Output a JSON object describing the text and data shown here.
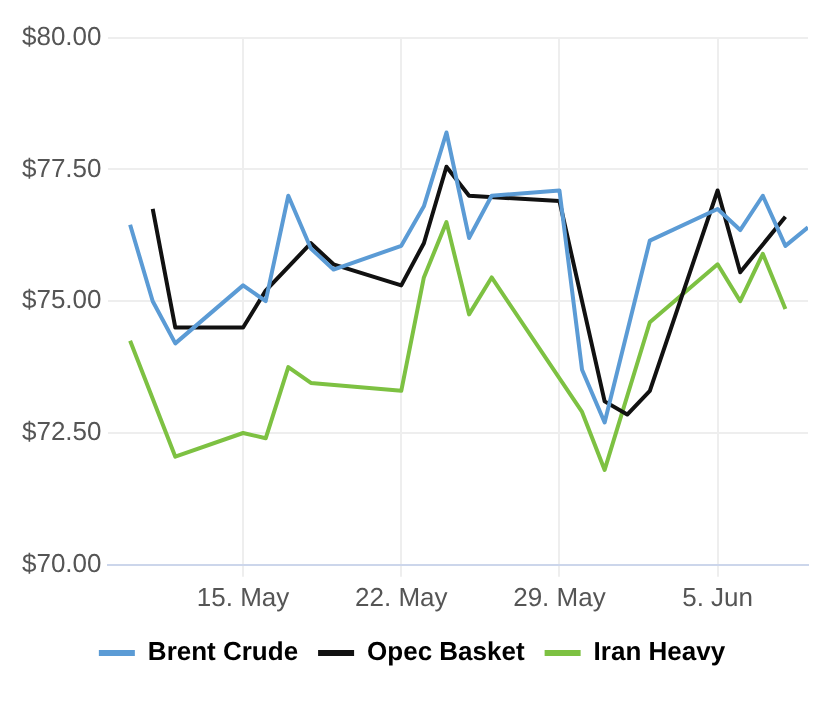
{
  "chart_data": {
    "type": "line",
    "grid": true,
    "legend": "bottom",
    "marker": "none",
    "line_style": "solid",
    "xlim": [
      "--05-09",
      "--06-09"
    ],
    "xticks": [
      {
        "value": "--05-15",
        "label": "15. May"
      },
      {
        "value": "--05-22",
        "label": "22. May"
      },
      {
        "value": "--05-29",
        "label": "29. May"
      },
      {
        "value": "--06-05",
        "label": "5. Jun"
      }
    ],
    "ylim": [
      70,
      80
    ],
    "yticks": [
      {
        "value": 70,
        "label": "$70.00"
      },
      {
        "value": 72.5,
        "label": "$72.50"
      },
      {
        "value": 75,
        "label": "$75.00"
      },
      {
        "value": 77.5,
        "label": "$77.50"
      },
      {
        "value": 80,
        "label": "$80.00"
      }
    ],
    "series": [
      {
        "name": "Brent Crude",
        "color": "#5b9bd5",
        "x": [
          "--05-10",
          "--05-11",
          "--05-12",
          "--05-15",
          "--05-16",
          "--05-17",
          "--05-18",
          "--05-19",
          "--05-22",
          "--05-23",
          "--05-24",
          "--05-25",
          "--05-26",
          "--05-29",
          "--05-30",
          "--05-31",
          "--06-02",
          "--06-05",
          "--06-06",
          "--06-07",
          "--06-08",
          "--06-09"
        ],
        "values": [
          76.45,
          75.0,
          74.2,
          75.3,
          75.0,
          77.0,
          76.0,
          75.6,
          76.05,
          76.8,
          78.2,
          76.2,
          77.0,
          77.1,
          73.7,
          72.7,
          76.15,
          76.75,
          76.35,
          77.0,
          76.05,
          76.4
        ]
      },
      {
        "name": "Opec Basket",
        "color": "#111111",
        "x": [
          "--05-11",
          "--05-12",
          "--05-15",
          "--05-16",
          "--05-18",
          "--05-19",
          "--05-22",
          "--05-23",
          "--05-24",
          "--05-25",
          "--05-29",
          "--05-31",
          "--06-01",
          "--06-02",
          "--06-05",
          "--06-06",
          "--06-08"
        ],
        "values": [
          76.75,
          74.5,
          74.5,
          75.2,
          76.1,
          75.7,
          75.3,
          76.1,
          77.55,
          77.0,
          76.9,
          73.1,
          72.85,
          73.3,
          77.1,
          75.55,
          76.6
        ]
      },
      {
        "name": "Iran Heavy",
        "color": "#7dc142",
        "x": [
          "--05-10",
          "--05-12",
          "--05-15",
          "--05-16",
          "--05-17",
          "--05-18",
          "--05-22",
          "--05-23",
          "--05-24",
          "--05-25",
          "--05-26",
          "--05-30",
          "--05-31",
          "--06-02",
          "--06-05",
          "--06-06",
          "--06-07",
          "--06-08"
        ],
        "values": [
          74.25,
          72.05,
          72.5,
          72.4,
          73.75,
          73.45,
          73.3,
          75.45,
          76.5,
          74.75,
          75.45,
          72.9,
          71.8,
          74.6,
          75.7,
          75.0,
          75.9,
          74.85
        ]
      }
    ]
  }
}
